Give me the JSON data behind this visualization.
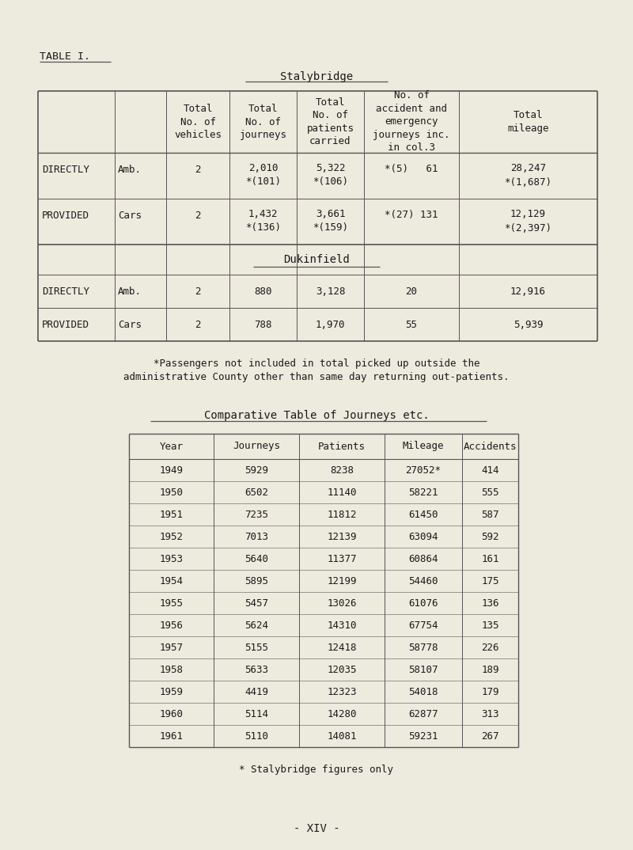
{
  "bg_color": "#edeade",
  "text_color": "#1a1a1a",
  "table_label": "TABLE I.",
  "title_table1": "Stalybridge",
  "dukinfield_title": "Dukinfield",
  "header_texts": [
    "Total\nNo. of\nvehicles",
    "Total\nNo. of\njourneys",
    "Total\nNo. of\npatients\ncarried",
    "No. of\naccident and\nemergency\njourneys inc.\nin col.3",
    "Total\nmileage"
  ],
  "staly_rows": [
    [
      "DIRECTLY",
      "Amb.",
      "2",
      "2,010\n*(101)",
      "5,322\n*(106)",
      "*(5)   61",
      "28,247\n*(1,687)"
    ],
    [
      "PROVIDED",
      "Cars",
      "2",
      "1,432\n*(136)",
      "3,661\n*(159)",
      "*(27) 131",
      "12,129\n*(2,397)"
    ]
  ],
  "duki_rows": [
    [
      "DIRECTLY",
      "Amb.",
      "2",
      "880",
      "3,128",
      "20",
      "12,916"
    ],
    [
      "PROVIDED",
      "Cars",
      "2",
      "788",
      "1,970",
      "55",
      "5,939"
    ]
  ],
  "footnote1_line1": "*Passengers not included in total picked up outside the",
  "footnote1_line2": "administrative County other than same day returning out-patients.",
  "title_table2": "Comparative Table of Journeys etc.",
  "comp_headers": [
    "Year",
    "Journeys",
    "Patients",
    "Mileage",
    "Accidents"
  ],
  "comp_data": [
    [
      "1949",
      "5929",
      "8238",
      "27052*",
      "414"
    ],
    [
      "1950",
      "6502",
      "11140",
      "58221",
      "555"
    ],
    [
      "1951",
      "7235",
      "11812",
      "61450",
      "587"
    ],
    [
      "1952",
      "7013",
      "12139",
      "63094",
      "592"
    ],
    [
      "1953",
      "5640",
      "11377",
      "60864",
      "161"
    ],
    [
      "1954",
      "5895",
      "12199",
      "54460",
      "175"
    ],
    [
      "1955",
      "5457",
      "13026",
      "61076",
      "136"
    ],
    [
      "1956",
      "5624",
      "14310",
      "67754",
      "135"
    ],
    [
      "1957",
      "5155",
      "12418",
      "58778",
      "226"
    ],
    [
      "1958",
      "5633",
      "12035",
      "58107",
      "189"
    ],
    [
      "1959",
      "4419",
      "12323",
      "54018",
      "179"
    ],
    [
      "1960",
      "5114",
      "14280",
      "62877",
      "313"
    ],
    [
      "1961",
      "5110",
      "14081",
      "59231",
      "267"
    ]
  ],
  "footnote2": "* Stalybridge figures only",
  "page_label": "- XIV -"
}
